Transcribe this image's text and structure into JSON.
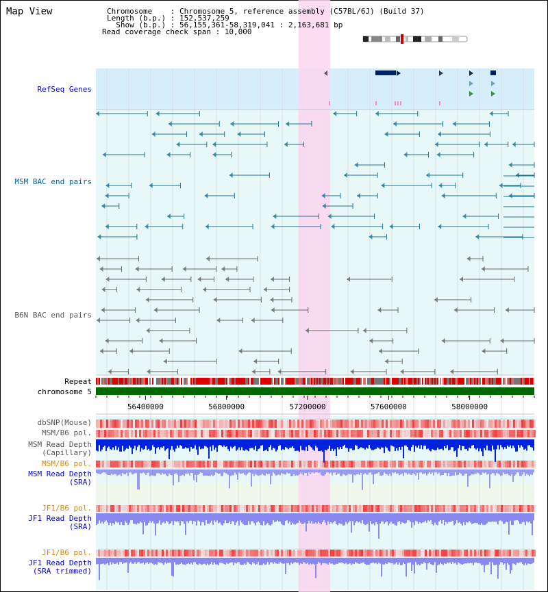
{
  "app": {
    "title": "Map View"
  },
  "header": {
    "chromosome": "Chromosome    : Chromosome 5, reference assembly (C57BL/6J) (Build 37)",
    "length": "Length (b.p.) : 152,537,259",
    "show": "  Show (b.p.) : 56,155,361-58,319,041 : 2,163,681 bp",
    "coverage": "Read coverage check span : 10,000"
  },
  "tracks": {
    "refseq": "RefSeq Genes",
    "msm_bac": "MSM BAC end pairs",
    "b6n_bac": "B6N BAC end pairs",
    "repeat": "Repeat",
    "chromosome": "chromosome 5",
    "dbsnp": "dbSNP(Mouse)",
    "msm_b6_pol1": "MSM/B6 pol.",
    "msm_depth_cap_1": "MSM Read Depth",
    "msm_depth_cap_2": "(Capillary)",
    "msm_b6_pol2": "MSM/B6 pol.",
    "msm_depth_sra_1": "MSM Read Depth",
    "msm_depth_sra_2": "(SRA)",
    "jf1_b6_pol1": "JF1/B6 pol.",
    "jf1_depth_sra_1": "JF1 Read Depth",
    "jf1_depth_sra_2": "(SRA)",
    "jf1_b6_pol2": "JF1/B6 pol.",
    "jf1_depth_trim_1": "JF1 Read Depth",
    "jf1_depth_trim_2": "(SRA trimmed)"
  },
  "axis": {
    "ticks": [
      {
        "label": "56400000",
        "value": 56400000
      },
      {
        "label": "56800000",
        "value": 56800000
      },
      {
        "label": "57200000",
        "value": 57200000
      },
      {
        "label": "57600000",
        "value": 57600000
      },
      {
        "label": "58000000",
        "value": 58000000
      }
    ],
    "range": [
      56155361,
      58319041
    ],
    "highlight": [
      57155000,
      57312000
    ]
  },
  "colors": {
    "refseq_label": "#0000cc",
    "msm_label": "#006699",
    "b6n_label": "#555555",
    "orange_label": "#dd8800",
    "blue_label": "#0000cc",
    "refseq_bg": "#d6eefa",
    "track_bg": "#e8f8f8",
    "highlight": "#fad6f0",
    "msm_pair": "#1a7590",
    "b6n_pair": "#666666",
    "chrom_bar": "#006600",
    "depth_dark": "#0022dd",
    "depth_light": "#8888ee"
  }
}
